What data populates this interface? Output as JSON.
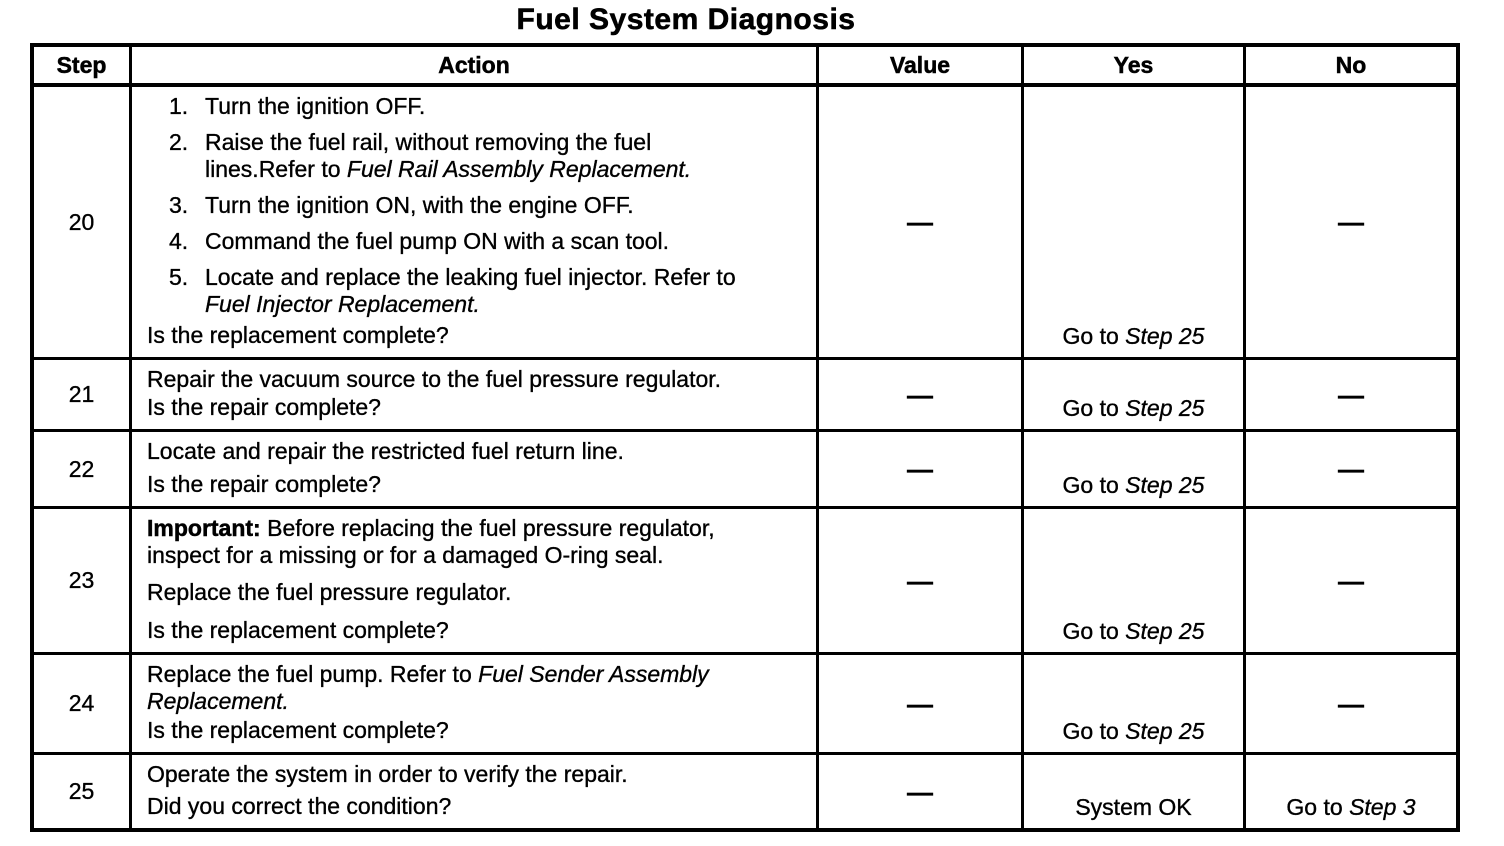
{
  "title": "Fuel System Diagnosis",
  "table": {
    "headers": {
      "step": "Step",
      "action": "Action",
      "value": "Value",
      "yes": "Yes",
      "no": "No"
    },
    "rows": {
      "s20": {
        "step": "20",
        "item1_num": "1.",
        "item1": "Turn the ignition OFF.",
        "item2_num": "2.",
        "item2_l1": "Raise the fuel rail, without removing the fuel",
        "item2_l2_pre": "lines.Refer to ",
        "item2_l2_ref": "Fuel Rail Assembly Replacement.",
        "item3_num": "3.",
        "item3": "Turn the ignition ON, with the engine OFF.",
        "item4_num": "4.",
        "item4": "Command the fuel pump ON with a scan tool.",
        "item5_num": "5.",
        "item5_l1": "Locate and replace the leaking fuel injector. Refer to",
        "item5_l2_ref": "Fuel Injector Replacement.",
        "question": "Is the replacement complete?",
        "value": "—",
        "yes_pre": "Go to ",
        "yes_ref": "Step 25",
        "no": "—"
      },
      "s21": {
        "step": "21",
        "line1": "Repair the vacuum source to the fuel pressure regulator.",
        "question": "Is the repair complete?",
        "value": "—",
        "yes_pre": "Go to ",
        "yes_ref": "Step 25",
        "no": "—"
      },
      "s22": {
        "step": "22",
        "line1": "Locate and repair the restricted fuel return line.",
        "question": "Is the repair complete?",
        "value": "—",
        "yes_pre": "Go to ",
        "yes_ref": "Step 25",
        "no": "—"
      },
      "s23": {
        "step": "23",
        "important_label": "Important:",
        "important_l1_rest": " Before replacing the fuel pressure regulator,",
        "important_l2": "inspect for a missing or for a damaged O-ring seal.",
        "line2": "Replace the fuel pressure regulator.",
        "question": "Is the replacement complete?",
        "value": "—",
        "yes_pre": "Go to ",
        "yes_ref": "Step 25",
        "no": "—"
      },
      "s24": {
        "step": "24",
        "line1_pre": "Replace the fuel pump. Refer to ",
        "line1_ref": "Fuel Sender Assembly",
        "line2_ref": "Replacement.",
        "question": "Is the replacement complete?",
        "value": "—",
        "yes_pre": "Go to ",
        "yes_ref": "Step 25",
        "no": "—"
      },
      "s25": {
        "step": "25",
        "line1": "Operate the system in order to verify the repair.",
        "question": "Did you correct the condition?",
        "value": "—",
        "yes": "System OK",
        "no_pre": "Go to ",
        "no_ref": "Step 3"
      }
    }
  }
}
